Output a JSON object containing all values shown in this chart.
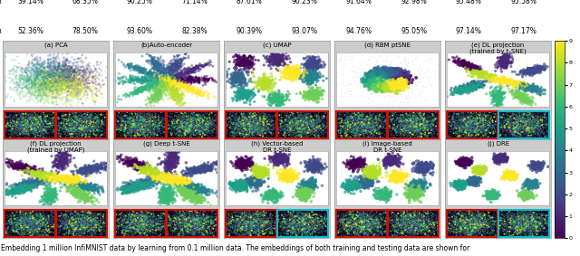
{
  "caption": "Embedding 1 million InfiMNIST data by learning from 0.1 million data. The embeddings of both training and testing data are shown for",
  "top_table": {
    "row1_label": "ion",
    "row2_label": "ion",
    "row1_vals": [
      "39.14%",
      "68.35%",
      "90.25%",
      "71.14%",
      "87.61%",
      "90.23%",
      "91.64%",
      "92.98%",
      "95.48%",
      "95.58%"
    ],
    "row2_vals": [
      "52.36%",
      "78.50%",
      "93.60%",
      "82.38%",
      "90.39%",
      "93.07%",
      "94.76%",
      "95.05%",
      "97.14%",
      "97.17%"
    ]
  },
  "panels_row1_labels": [
    "(a) PCA",
    "(b)Auto-encoder",
    "(c) UMAP",
    "(d) RBM ptSNE",
    "(e) DL projection\n(trained by t-SNE)"
  ],
  "panels_row2_labels": [
    "(f) DL projection\n(trained by UMAP)",
    "(g) Deep t-SNE",
    "(h) Vector-based\nDR t-SNE",
    "(i) Image-based\nDR t-SNE",
    "(j) DRE"
  ],
  "background_color": "#ffffff",
  "scatter_bg": "#ffffff",
  "dark_bg": "#08041a",
  "border_red": "#cc1100",
  "border_cyan": "#00bbcc",
  "border_gray": "#888888",
  "colorbar_ticks": [
    0,
    1,
    2,
    3,
    4,
    5,
    6,
    7,
    8,
    9
  ],
  "fig_width": 6.4,
  "fig_height": 2.83,
  "caption_fontsize": 5.5,
  "label_fontsize": 5.0,
  "table_fontsize": 5.5
}
